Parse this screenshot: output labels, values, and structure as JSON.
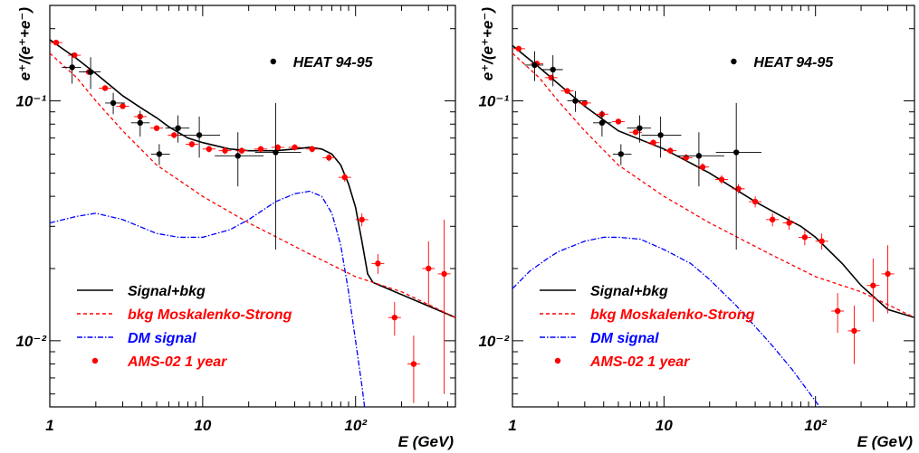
{
  "chart_data": [
    {
      "type": "line",
      "title": "",
      "xlabel": "E (GeV)",
      "ylabel": "e⁺/(e⁺+e⁻)",
      "xscale": "log",
      "yscale": "log",
      "xlim": [
        1,
        450
      ],
      "ylim": [
        0.0053,
        0.25
      ],
      "x_ticks": [
        {
          "value": 1,
          "label": "1"
        },
        {
          "value": 10,
          "label": "10"
        },
        {
          "value": 100,
          "label": "10²"
        }
      ],
      "y_ticks": [
        {
          "value": 0.1,
          "label": "10⁻¹"
        },
        {
          "value": 0.01,
          "label": "10⁻²"
        }
      ],
      "annotation": "HEAT 94-95",
      "legend_position": "bottom-left",
      "colors": {
        "total": "#000000",
        "bkg": "#ff0000",
        "dm": "#0000ff",
        "ams": "#ff0000",
        "heat": "#000000"
      },
      "series": [
        {
          "name": "Signal+bkg",
          "style": "solid",
          "color": "#000000",
          "x": [
            1,
            1.5,
            2,
            3,
            4,
            5,
            6,
            8,
            10,
            15,
            20,
            30,
            40,
            50,
            60,
            70,
            80,
            90,
            100,
            110,
            120,
            130,
            450
          ],
          "y": [
            0.18,
            0.15,
            0.13,
            0.105,
            0.093,
            0.085,
            0.078,
            0.07,
            0.067,
            0.063,
            0.062,
            0.062,
            0.063,
            0.064,
            0.063,
            0.06,
            0.054,
            0.045,
            0.036,
            0.026,
            0.019,
            0.0175,
            0.0125
          ]
        },
        {
          "name": "bkg Moskalenko-Strong",
          "style": "dashed",
          "color": "#ff0000",
          "x": [
            1,
            1.5,
            2,
            3,
            5,
            10,
            20,
            50,
            100,
            200,
            450
          ],
          "y": [
            0.158,
            0.125,
            0.1,
            0.075,
            0.054,
            0.04,
            0.031,
            0.023,
            0.0185,
            0.016,
            0.0125
          ]
        },
        {
          "name": "DM signal",
          "style": "dash-dot",
          "color": "#0000ff",
          "x": [
            1,
            1.5,
            2,
            3,
            5,
            7,
            10,
            15,
            20,
            30,
            40,
            50,
            60,
            70,
            80,
            90,
            100,
            110,
            115
          ],
          "y": [
            0.031,
            0.033,
            0.034,
            0.032,
            0.028,
            0.027,
            0.027,
            0.029,
            0.032,
            0.038,
            0.041,
            0.042,
            0.04,
            0.034,
            0.025,
            0.016,
            0.01,
            0.0065,
            0.0052
          ]
        }
      ],
      "points": [
        {
          "name": "AMS-02 1 year",
          "color": "#ff0000",
          "x": [
            1.1,
            1.45,
            1.8,
            2.3,
            3.0,
            3.9,
            5.0,
            6.5,
            8.5,
            11,
            14,
            18,
            24,
            31,
            40,
            52,
            67,
            85,
            110,
            140,
            180,
            240,
            300,
            380
          ],
          "y": [
            0.175,
            0.155,
            0.132,
            0.113,
            0.095,
            0.086,
            0.077,
            0.072,
            0.066,
            0.063,
            0.062,
            0.062,
            0.063,
            0.064,
            0.064,
            0.063,
            0.058,
            0.048,
            0.032,
            0.021,
            0.0125,
            0.008,
            0.02,
            0.019
          ],
          "yerr": [
            0.003,
            0.003,
            0.003,
            0.003,
            0.002,
            0.002,
            0.002,
            0.002,
            0.002,
            0.002,
            0.002,
            0.002,
            0.002,
            0.002,
            0.002,
            0.002,
            0.002,
            0.002,
            0.002,
            0.002,
            0.002,
            0.0025,
            0.006,
            0.013
          ]
        },
        {
          "name": "HEAT 94-95",
          "color": "#000000",
          "x": [
            1.4,
            1.85,
            2.6,
            3.9,
            5.2,
            6.9,
            9.5,
            17,
            30
          ],
          "y": [
            0.138,
            0.132,
            0.098,
            0.081,
            0.06,
            0.077,
            0.072,
            0.059,
            0.061
          ],
          "yerr": [
            0.02,
            0.02,
            0.01,
            0.01,
            0.006,
            0.01,
            0.014,
            0.015,
            0.037
          ],
          "xerr_lo": [
            0.2,
            0.3,
            0.3,
            0.5,
            0.6,
            1.2,
            2.4,
            5,
            8
          ],
          "xerr_hi": [
            0.2,
            0.3,
            0.5,
            0.6,
            0.9,
            1.3,
            3.5,
            8,
            14
          ]
        }
      ],
      "legend": [
        {
          "label": "Signal+bkg",
          "kind": "solid",
          "color": "#000000"
        },
        {
          "label": "bkg Moskalenko-Strong",
          "kind": "dashed",
          "color": "#ff0000"
        },
        {
          "label": "DM signal",
          "kind": "dash-dot",
          "color": "#0000ff"
        },
        {
          "label": "AMS-02 1 year",
          "kind": "marker",
          "color": "#ff0000"
        }
      ]
    },
    {
      "type": "line",
      "title": "",
      "xlabel": "E (GeV)",
      "ylabel": "e⁺/(e⁺+e⁻)",
      "xscale": "log",
      "yscale": "log",
      "xlim": [
        1,
        450
      ],
      "ylim": [
        0.0053,
        0.25
      ],
      "x_ticks": [
        {
          "value": 1,
          "label": "1"
        },
        {
          "value": 10,
          "label": "10"
        },
        {
          "value": 100,
          "label": "10²"
        }
      ],
      "y_ticks": [
        {
          "value": 0.1,
          "label": "10⁻¹"
        },
        {
          "value": 0.01,
          "label": "10⁻²"
        }
      ],
      "annotation": "HEAT 94-95",
      "legend_position": "bottom-left",
      "colors": {
        "total": "#000000",
        "bkg": "#ff0000",
        "dm": "#0000ff",
        "ams": "#ff0000",
        "heat": "#000000"
      },
      "series": [
        {
          "name": "Signal+bkg",
          "style": "solid",
          "color": "#000000",
          "x": [
            1,
            1.5,
            2,
            3,
            5,
            10,
            20,
            40,
            60,
            80,
            100,
            150,
            200,
            300,
            450
          ],
          "y": [
            0.17,
            0.138,
            0.118,
            0.095,
            0.075,
            0.063,
            0.05,
            0.038,
            0.033,
            0.03,
            0.027,
            0.021,
            0.017,
            0.0135,
            0.0125
          ]
        },
        {
          "name": "bkg Moskalenko-Strong",
          "style": "dashed",
          "color": "#ff0000",
          "x": [
            1,
            1.5,
            2,
            3,
            5,
            10,
            20,
            50,
            100,
            200,
            450
          ],
          "y": [
            0.158,
            0.125,
            0.1,
            0.075,
            0.054,
            0.04,
            0.031,
            0.023,
            0.0185,
            0.016,
            0.0125
          ]
        },
        {
          "name": "DM signal",
          "style": "dash-dot",
          "color": "#0000ff",
          "x": [
            1,
            1.3,
            1.7,
            2,
            3,
            4,
            5,
            7,
            10,
            15,
            20,
            30,
            50,
            70,
            100,
            120
          ],
          "y": [
            0.0165,
            0.0195,
            0.022,
            0.0235,
            0.026,
            0.027,
            0.027,
            0.0265,
            0.024,
            0.021,
            0.018,
            0.014,
            0.0098,
            0.0076,
            0.0056,
            0.0048
          ]
        }
      ],
      "points": [
        {
          "name": "AMS-02 1 year",
          "color": "#ff0000",
          "x": [
            1.1,
            1.45,
            1.8,
            2.3,
            3.0,
            3.9,
            5.0,
            6.5,
            8.5,
            11,
            14,
            18,
            24,
            31,
            40,
            52,
            67,
            85,
            110,
            140,
            180,
            240,
            300
          ],
          "y": [
            0.165,
            0.143,
            0.125,
            0.11,
            0.098,
            0.088,
            0.082,
            0.074,
            0.067,
            0.062,
            0.058,
            0.053,
            0.047,
            0.043,
            0.038,
            0.032,
            0.031,
            0.027,
            0.026,
            0.0133,
            0.011,
            0.017,
            0.019
          ],
          "yerr": [
            0.003,
            0.003,
            0.003,
            0.003,
            0.002,
            0.002,
            0.002,
            0.002,
            0.002,
            0.002,
            0.002,
            0.002,
            0.002,
            0.002,
            0.002,
            0.002,
            0.002,
            0.002,
            0.002,
            0.0025,
            0.003,
            0.005,
            0.006
          ]
        },
        {
          "name": "HEAT 94-95",
          "color": "#000000",
          "x": [
            1.4,
            1.85,
            2.6,
            3.9,
            5.2,
            6.9,
            9.5,
            17,
            30
          ],
          "y": [
            0.141,
            0.135,
            0.1,
            0.081,
            0.06,
            0.077,
            0.072,
            0.059,
            0.061
          ],
          "yerr": [
            0.02,
            0.02,
            0.01,
            0.01,
            0.006,
            0.01,
            0.014,
            0.015,
            0.037
          ],
          "xerr_lo": [
            0.2,
            0.3,
            0.3,
            0.5,
            0.6,
            1.2,
            2.4,
            5,
            8
          ],
          "xerr_hi": [
            0.2,
            0.3,
            0.5,
            0.6,
            0.9,
            1.3,
            3.5,
            8,
            14
          ]
        }
      ],
      "legend": [
        {
          "label": "Signal+bkg",
          "kind": "solid",
          "color": "#000000"
        },
        {
          "label": "bkg Moskalenko-Strong",
          "kind": "dashed",
          "color": "#ff0000"
        },
        {
          "label": "DM signal",
          "kind": "dash-dot",
          "color": "#0000ff"
        },
        {
          "label": "AMS-02 1 year",
          "kind": "marker",
          "color": "#ff0000"
        }
      ]
    }
  ]
}
